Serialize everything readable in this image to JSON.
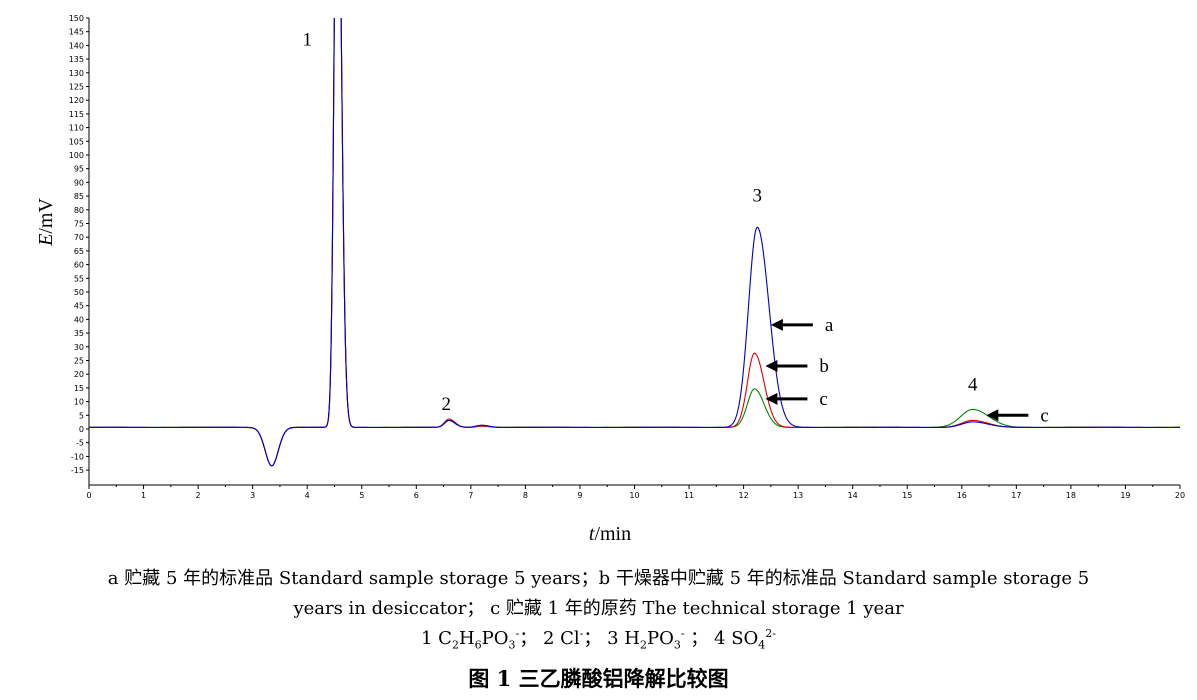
{
  "chart_data": {
    "type": "line",
    "xlabel_italic": "t",
    "xlabel_unit": "/min",
    "ylabel_italic": "E",
    "ylabel_unit": "/mV",
    "xlim": [
      0,
      20
    ],
    "ylim": [
      -20,
      150
    ],
    "x_ticks": [
      "0",
      "1",
      "2",
      "3",
      "4",
      "5",
      "6",
      "7",
      "8",
      "9",
      "10",
      "11",
      "12",
      "13",
      "14",
      "15",
      "16",
      "17",
      "18",
      "19",
      "20"
    ],
    "y_ticks": [
      "150",
      "145",
      "140",
      "135",
      "130",
      "125",
      "120",
      "115",
      "110",
      "105",
      "100",
      "95",
      "90",
      "85",
      "80",
      "75",
      "70",
      "65",
      "60",
      "55",
      "50",
      "45",
      "40",
      "35",
      "30",
      "25",
      "20",
      "15",
      "10",
      "5",
      "0",
      "-5",
      "-10",
      "-15"
    ],
    "series": [
      {
        "name": "a",
        "color": "#0000cc",
        "peaks": [
          {
            "t": 3.35,
            "h": -14,
            "w": 0.12
          },
          {
            "t": 4.55,
            "h": 240,
            "w": 0.055
          },
          {
            "t": 6.6,
            "h": 2.5,
            "w": 0.08
          },
          {
            "t": 7.2,
            "h": 0.8,
            "w": 0.1
          },
          {
            "t": 12.25,
            "h": 73,
            "w": 0.16
          },
          {
            "t": 16.2,
            "h": 2,
            "w": 0.2
          }
        ]
      },
      {
        "name": "b",
        "color": "#dd0000",
        "peaks": [
          {
            "t": 3.35,
            "h": -14,
            "w": 0.12
          },
          {
            "t": 4.55,
            "h": 240,
            "w": 0.055
          },
          {
            "t": 6.6,
            "h": 3,
            "w": 0.08
          },
          {
            "t": 7.2,
            "h": 0.5,
            "w": 0.1
          },
          {
            "t": 12.2,
            "h": 27,
            "w": 0.13
          },
          {
            "t": 16.2,
            "h": 2.5,
            "w": 0.2
          }
        ]
      },
      {
        "name": "c",
        "color": "#008800",
        "peaks": [
          {
            "t": 3.35,
            "h": -14,
            "w": 0.12
          },
          {
            "t": 4.55,
            "h": 240,
            "w": 0.055
          },
          {
            "t": 6.6,
            "h": 2.5,
            "w": 0.08
          },
          {
            "t": 7.2,
            "h": 0.5,
            "w": 0.1
          },
          {
            "t": 12.2,
            "h": 14,
            "w": 0.13
          },
          {
            "t": 16.2,
            "h": 6.5,
            "w": 0.22
          }
        ]
      }
    ],
    "peak_labels": [
      {
        "text": "1",
        "t": 4.0,
        "e": 140
      },
      {
        "text": "2",
        "t": 6.55,
        "e": 7
      },
      {
        "text": "3",
        "t": 12.25,
        "e": 83
      },
      {
        "text": "4",
        "t": 16.2,
        "e": 14
      }
    ],
    "arrows": [
      {
        "text": "a",
        "t_tip": 12.5,
        "e": 38
      },
      {
        "text": "b",
        "t_tip": 12.4,
        "e": 23
      },
      {
        "text": "c",
        "t_tip": 12.4,
        "e": 11
      },
      {
        "text": "c",
        "t_tip": 16.45,
        "e": 5
      }
    ]
  },
  "caption": {
    "line1": "a  贮藏 5 年的标准品 Standard sample storage 5 years；b  干燥器中贮藏 5 年的标准品  Standard sample storage 5",
    "line2": "years in desiccator；  c  贮藏 1 年的原药  The technical storage 1 year",
    "line3_parts": {
      "p1_a": "1 C",
      "p1_s1": "2",
      "p1_b": "H",
      "p1_s2": "6",
      "p1_c": "PO",
      "p1_s3": "3",
      "p1_sup": "-",
      "p1_end": "；",
      "p2_a": "  2 Cl",
      "p2_sup": "-",
      "p2_end": "；",
      "p3_a": "  3 H",
      "p3_s1": "2",
      "p3_b": "PO",
      "p3_s2": "3",
      "p3_sup": "-",
      "p3_end": "  ；",
      "p4_a": "  4 SO",
      "p4_s1": "4",
      "p4_sup": "2-"
    },
    "title": "图 1 三乙膦酸铝降解比较图"
  }
}
